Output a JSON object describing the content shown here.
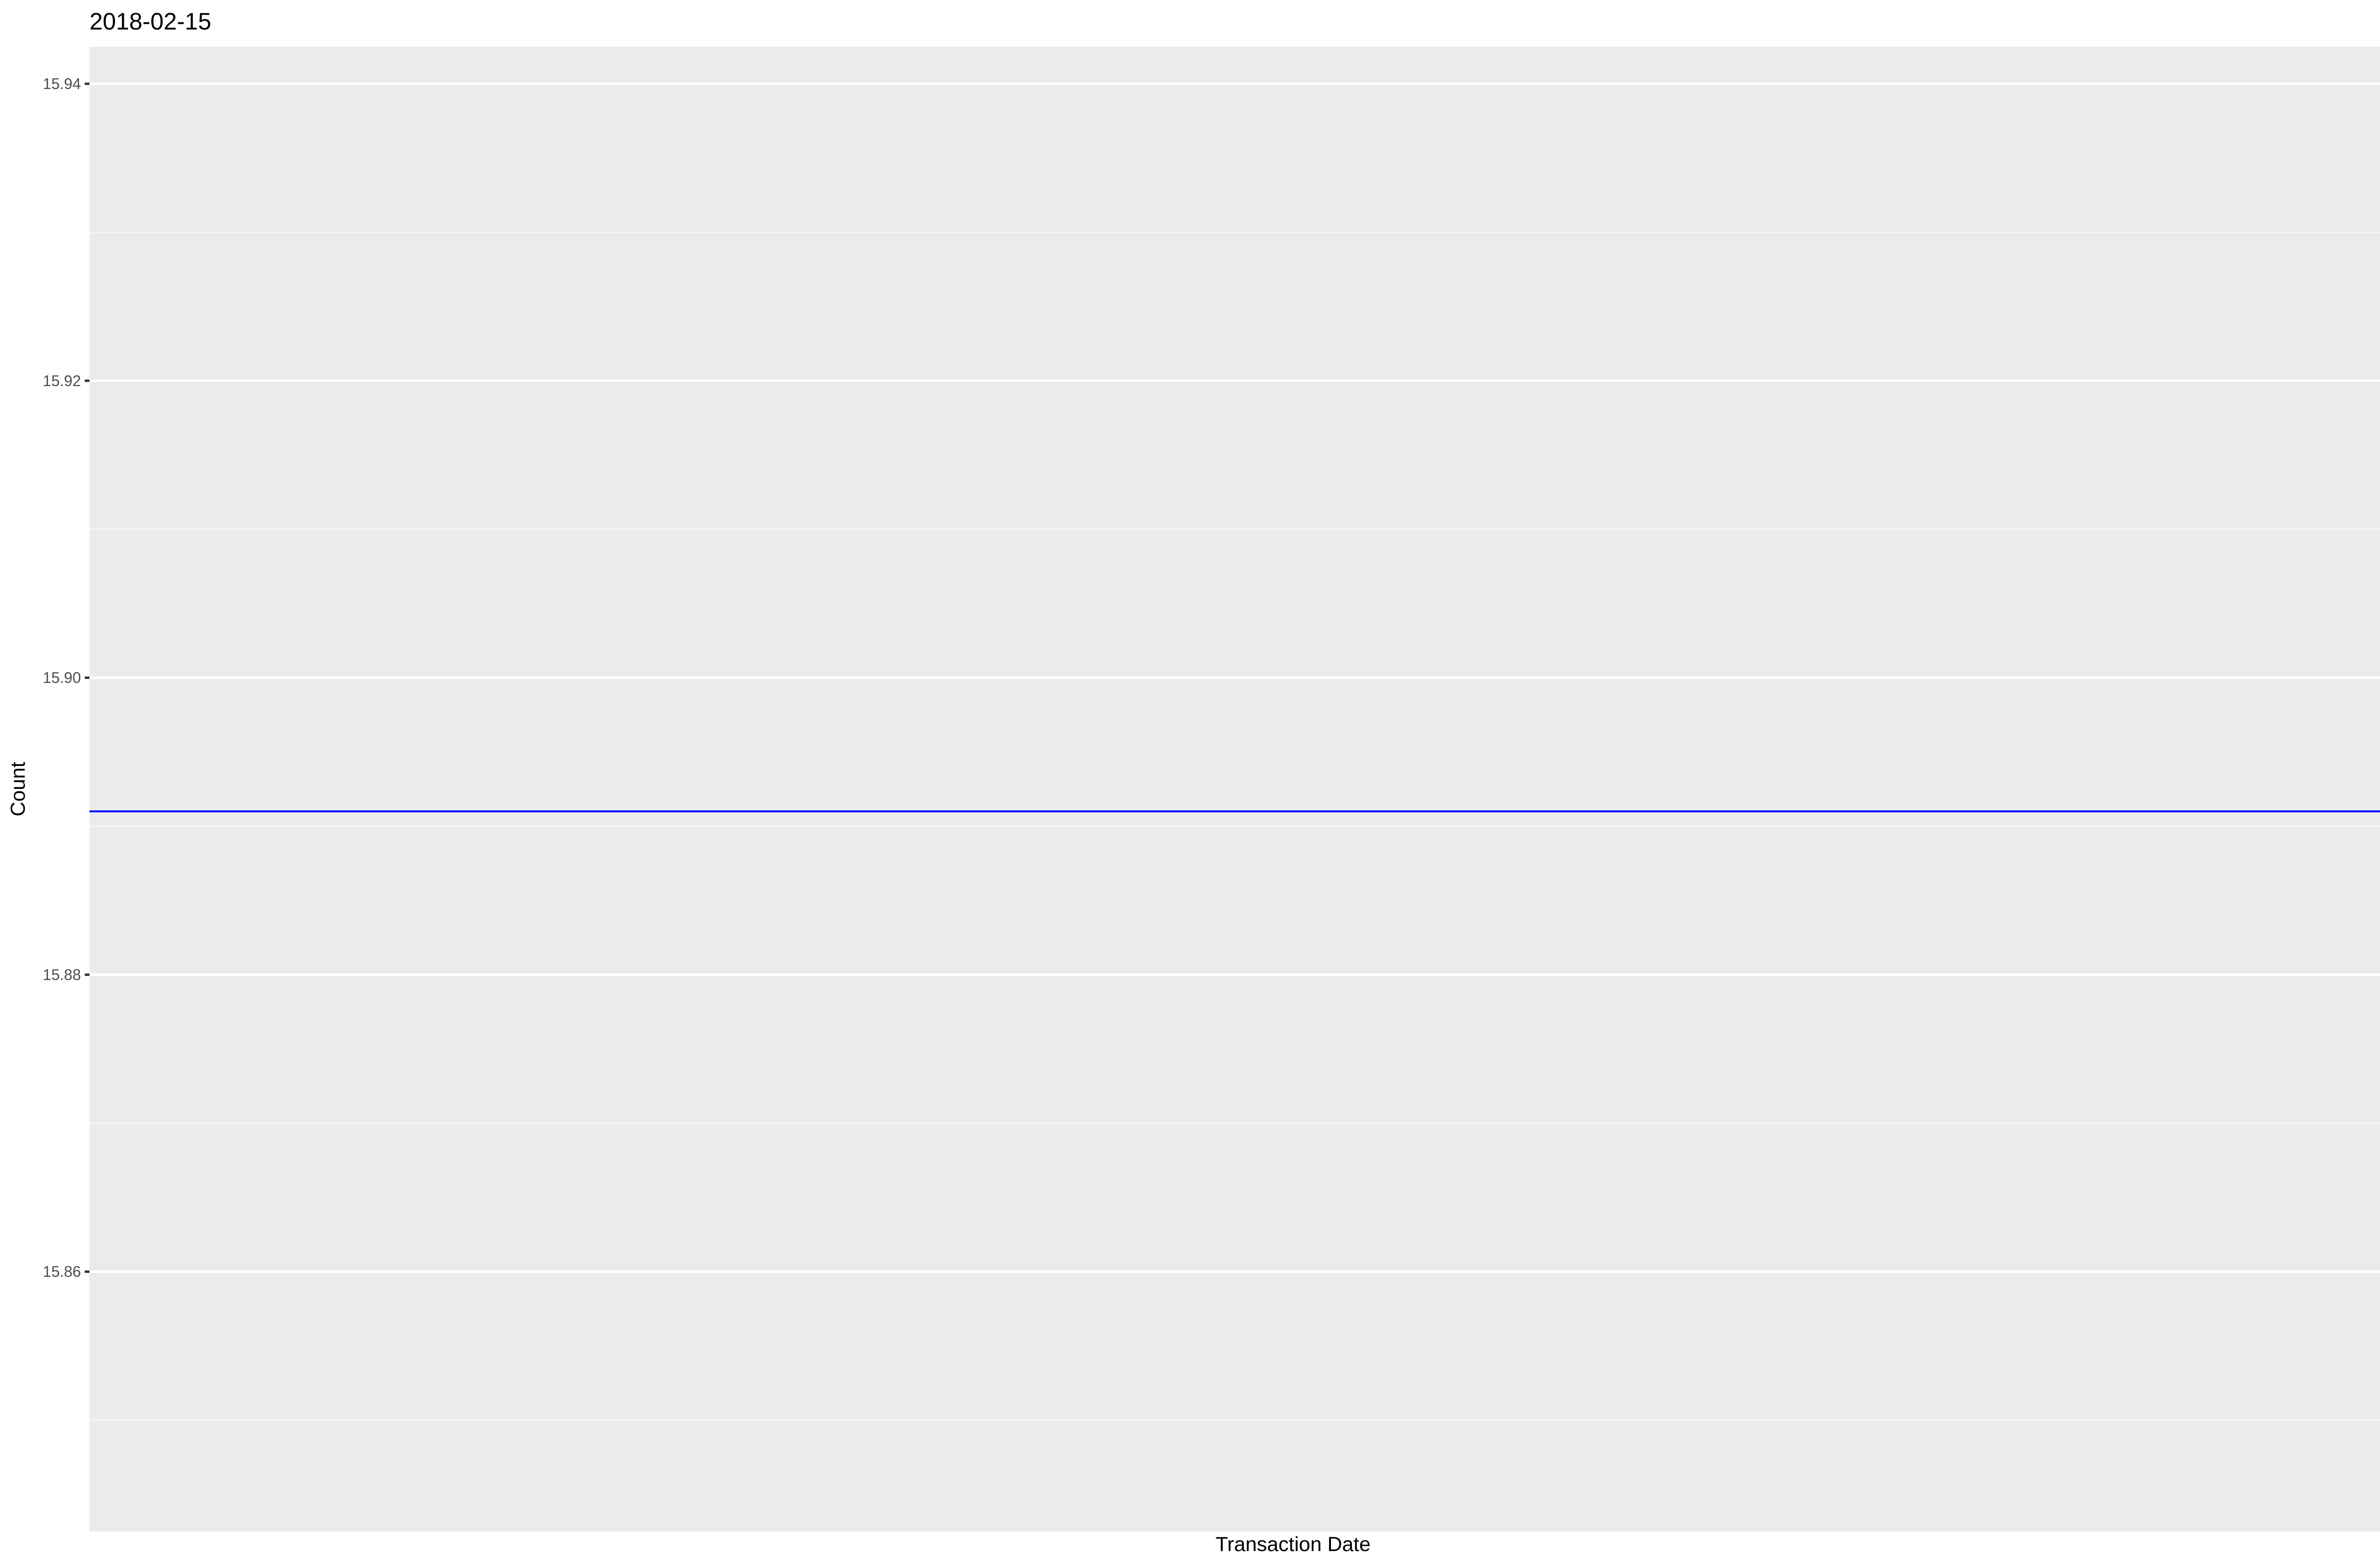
{
  "chart_data": {
    "type": "line",
    "title": "2018-02-15",
    "xlabel": "Transaction Date",
    "ylabel": "Count",
    "ylim": [
      15.8425,
      15.9425
    ],
    "y_ticks": [
      15.86,
      15.88,
      15.9,
      15.92,
      15.94
    ],
    "y_tick_labels": [
      "15.86",
      "15.88",
      "15.90",
      "15.92",
      "15.94"
    ],
    "x_ticks": [],
    "grid": true,
    "series": [
      {
        "values": [
          15.891,
          15.891
        ],
        "x": [
          0,
          1
        ]
      }
    ],
    "colors": {
      "panel_background": "#EBEBEB",
      "grid_major": "#FFFFFF",
      "grid_minor": "#F5F5F5",
      "line": "#0000FF",
      "tick": "#333333"
    }
  }
}
